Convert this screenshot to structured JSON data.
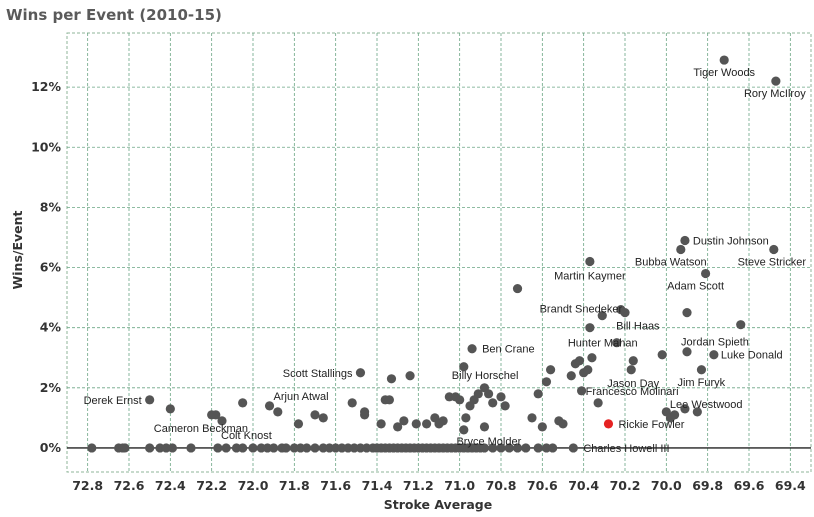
{
  "title": "Wins per Event (2010-15)",
  "chart_data": {
    "type": "scatter",
    "title": "Wins per Event (2010-15)",
    "xlabel": "Stroke Average",
    "ylabel": "Wins/Event",
    "x_reversed": true,
    "xlim": [
      72.9,
      69.3
    ],
    "ylim": [
      -0.8,
      13.8
    ],
    "xticks": [
      "72.8",
      "72.6",
      "72.4",
      "72.2",
      "72.0",
      "71.8",
      "71.6",
      "71.4",
      "71.2",
      "71.0",
      "70.8",
      "70.6",
      "70.4",
      "70.2",
      "70.0",
      "69.8",
      "69.6",
      "69.4"
    ],
    "yticks": [
      "0%",
      "2%",
      "4%",
      "6%",
      "8%",
      "10%",
      "12%"
    ],
    "grid": true,
    "point_color": "#555555",
    "highlight_color": "#e52222",
    "labeled_points": [
      {
        "name": "Tiger Woods",
        "x": 69.72,
        "y": 12.9
      },
      {
        "name": "Rory McIlroy",
        "x": 69.47,
        "y": 12.2
      },
      {
        "name": "Dustin Johnson",
        "x": 69.91,
        "y": 6.9
      },
      {
        "name": "Bubba Watson",
        "x": 69.93,
        "y": 6.6
      },
      {
        "name": "Steve Stricker",
        "x": 69.48,
        "y": 6.6
      },
      {
        "name": "Martin Kaymer",
        "x": 70.37,
        "y": 6.2
      },
      {
        "name": "Adam Scott",
        "x": 69.81,
        "y": 5.8
      },
      {
        "name": "Brandt Snedeker",
        "x": 70.22,
        "y": 4.6
      },
      {
        "name": "Bill Haas",
        "x": 70.37,
        "y": 4.0
      },
      {
        "name": "Hunter Mahan",
        "x": 70.24,
        "y": 3.5
      },
      {
        "name": "Jordan Spieth",
        "x": 69.9,
        "y": 3.2
      },
      {
        "name": "Luke Donald",
        "x": 69.77,
        "y": 3.1
      },
      {
        "name": "Ben Crane",
        "x": 70.94,
        "y": 3.3
      },
      {
        "name": "Billy Horschel",
        "x": 70.98,
        "y": 2.7
      },
      {
        "name": "Scott Stallings",
        "x": 71.48,
        "y": 2.5
      },
      {
        "name": "Jason Day",
        "x": 70.17,
        "y": 2.6
      },
      {
        "name": "Jim Furyk",
        "x": 69.83,
        "y": 2.6
      },
      {
        "name": "Francesco Molinari",
        "x": 70.41,
        "y": 1.9
      },
      {
        "name": "Lee Westwood",
        "x": 69.91,
        "y": 1.3
      },
      {
        "name": "Derek Ernst",
        "x": 72.5,
        "y": 1.6
      },
      {
        "name": "Arjun Atwal",
        "x": 71.92,
        "y": 1.4
      },
      {
        "name": "Rickie Fowler",
        "x": 70.28,
        "y": 0.8,
        "highlight": true
      },
      {
        "name": "Cameron Beckman",
        "x": 72.18,
        "y": 1.1
      },
      {
        "name": "Colt Knost",
        "x": 72.15,
        "y": 0.9
      },
      {
        "name": "Bryce Molder",
        "x": 70.88,
        "y": 0.7
      },
      {
        "name": "Charles Howell III",
        "x": 70.45,
        "y": 0.0
      }
    ],
    "other_points": [
      [
        72.4,
        1.3
      ],
      [
        72.2,
        1.1
      ],
      [
        72.05,
        1.5
      ],
      [
        71.88,
        1.2
      ],
      [
        71.78,
        0.8
      ],
      [
        71.7,
        1.1
      ],
      [
        71.66,
        1.0
      ],
      [
        71.52,
        1.5
      ],
      [
        71.46,
        1.2
      ],
      [
        71.46,
        1.1
      ],
      [
        71.38,
        0.8
      ],
      [
        71.36,
        1.6
      ],
      [
        71.34,
        1.6
      ],
      [
        71.33,
        2.3
      ],
      [
        71.24,
        2.4
      ],
      [
        71.3,
        0.7
      ],
      [
        71.27,
        0.9
      ],
      [
        71.21,
        0.8
      ],
      [
        71.16,
        0.8
      ],
      [
        71.12,
        1.0
      ],
      [
        71.08,
        0.9
      ],
      [
        71.05,
        1.7
      ],
      [
        71.0,
        1.6
      ],
      [
        70.97,
        1.0
      ],
      [
        70.95,
        1.4
      ],
      [
        70.93,
        1.6
      ],
      [
        70.91,
        1.8
      ],
      [
        70.88,
        2.0
      ],
      [
        70.86,
        1.8
      ],
      [
        70.84,
        1.5
      ],
      [
        70.8,
        1.7
      ],
      [
        70.78,
        1.4
      ],
      [
        70.72,
        5.3
      ],
      [
        70.65,
        1.0
      ],
      [
        70.62,
        1.8
      ],
      [
        70.58,
        2.2
      ],
      [
        70.56,
        2.6
      ],
      [
        70.52,
        0.9
      ],
      [
        70.5,
        0.8
      ],
      [
        70.46,
        2.4
      ],
      [
        70.44,
        2.8
      ],
      [
        70.42,
        2.9
      ],
      [
        70.4,
        2.5
      ],
      [
        70.38,
        2.6
      ],
      [
        70.36,
        3.0
      ],
      [
        70.33,
        1.5
      ],
      [
        70.31,
        4.4
      ],
      [
        70.2,
        4.5
      ],
      [
        70.16,
        2.9
      ],
      [
        70.02,
        3.1
      ],
      [
        70.0,
        1.2
      ],
      [
        69.98,
        1.0
      ],
      [
        69.96,
        1.1
      ],
      [
        69.9,
        4.5
      ],
      [
        69.85,
        1.2
      ],
      [
        69.64,
        4.1
      ],
      [
        71.02,
        1.7
      ],
      [
        70.6,
        0.7
      ],
      [
        71.1,
        0.8
      ],
      [
        70.98,
        0.6
      ]
    ],
    "zero_points_x": [
      72.78,
      72.65,
      72.63,
      72.62,
      72.5,
      72.45,
      72.42,
      72.39,
      72.3,
      72.17,
      72.13,
      72.08,
      72.05,
      72.0,
      71.96,
      71.93,
      71.9,
      71.86,
      71.84,
      71.8,
      71.77,
      71.74,
      71.7,
      71.66,
      71.63,
      71.6,
      71.57,
      71.54,
      71.51,
      71.48,
      71.45,
      71.42,
      71.4,
      71.38,
      71.36,
      71.34,
      71.32,
      71.3,
      71.28,
      71.26,
      71.24,
      71.22,
      71.2,
      71.18,
      71.16,
      71.14,
      71.12,
      71.1,
      71.08,
      71.06,
      71.04,
      71.02,
      71.0,
      70.98,
      70.96,
      70.94,
      70.92,
      70.9,
      70.88,
      70.84,
      70.8,
      70.76,
      70.72,
      70.68,
      70.62,
      70.58,
      70.55
    ]
  }
}
